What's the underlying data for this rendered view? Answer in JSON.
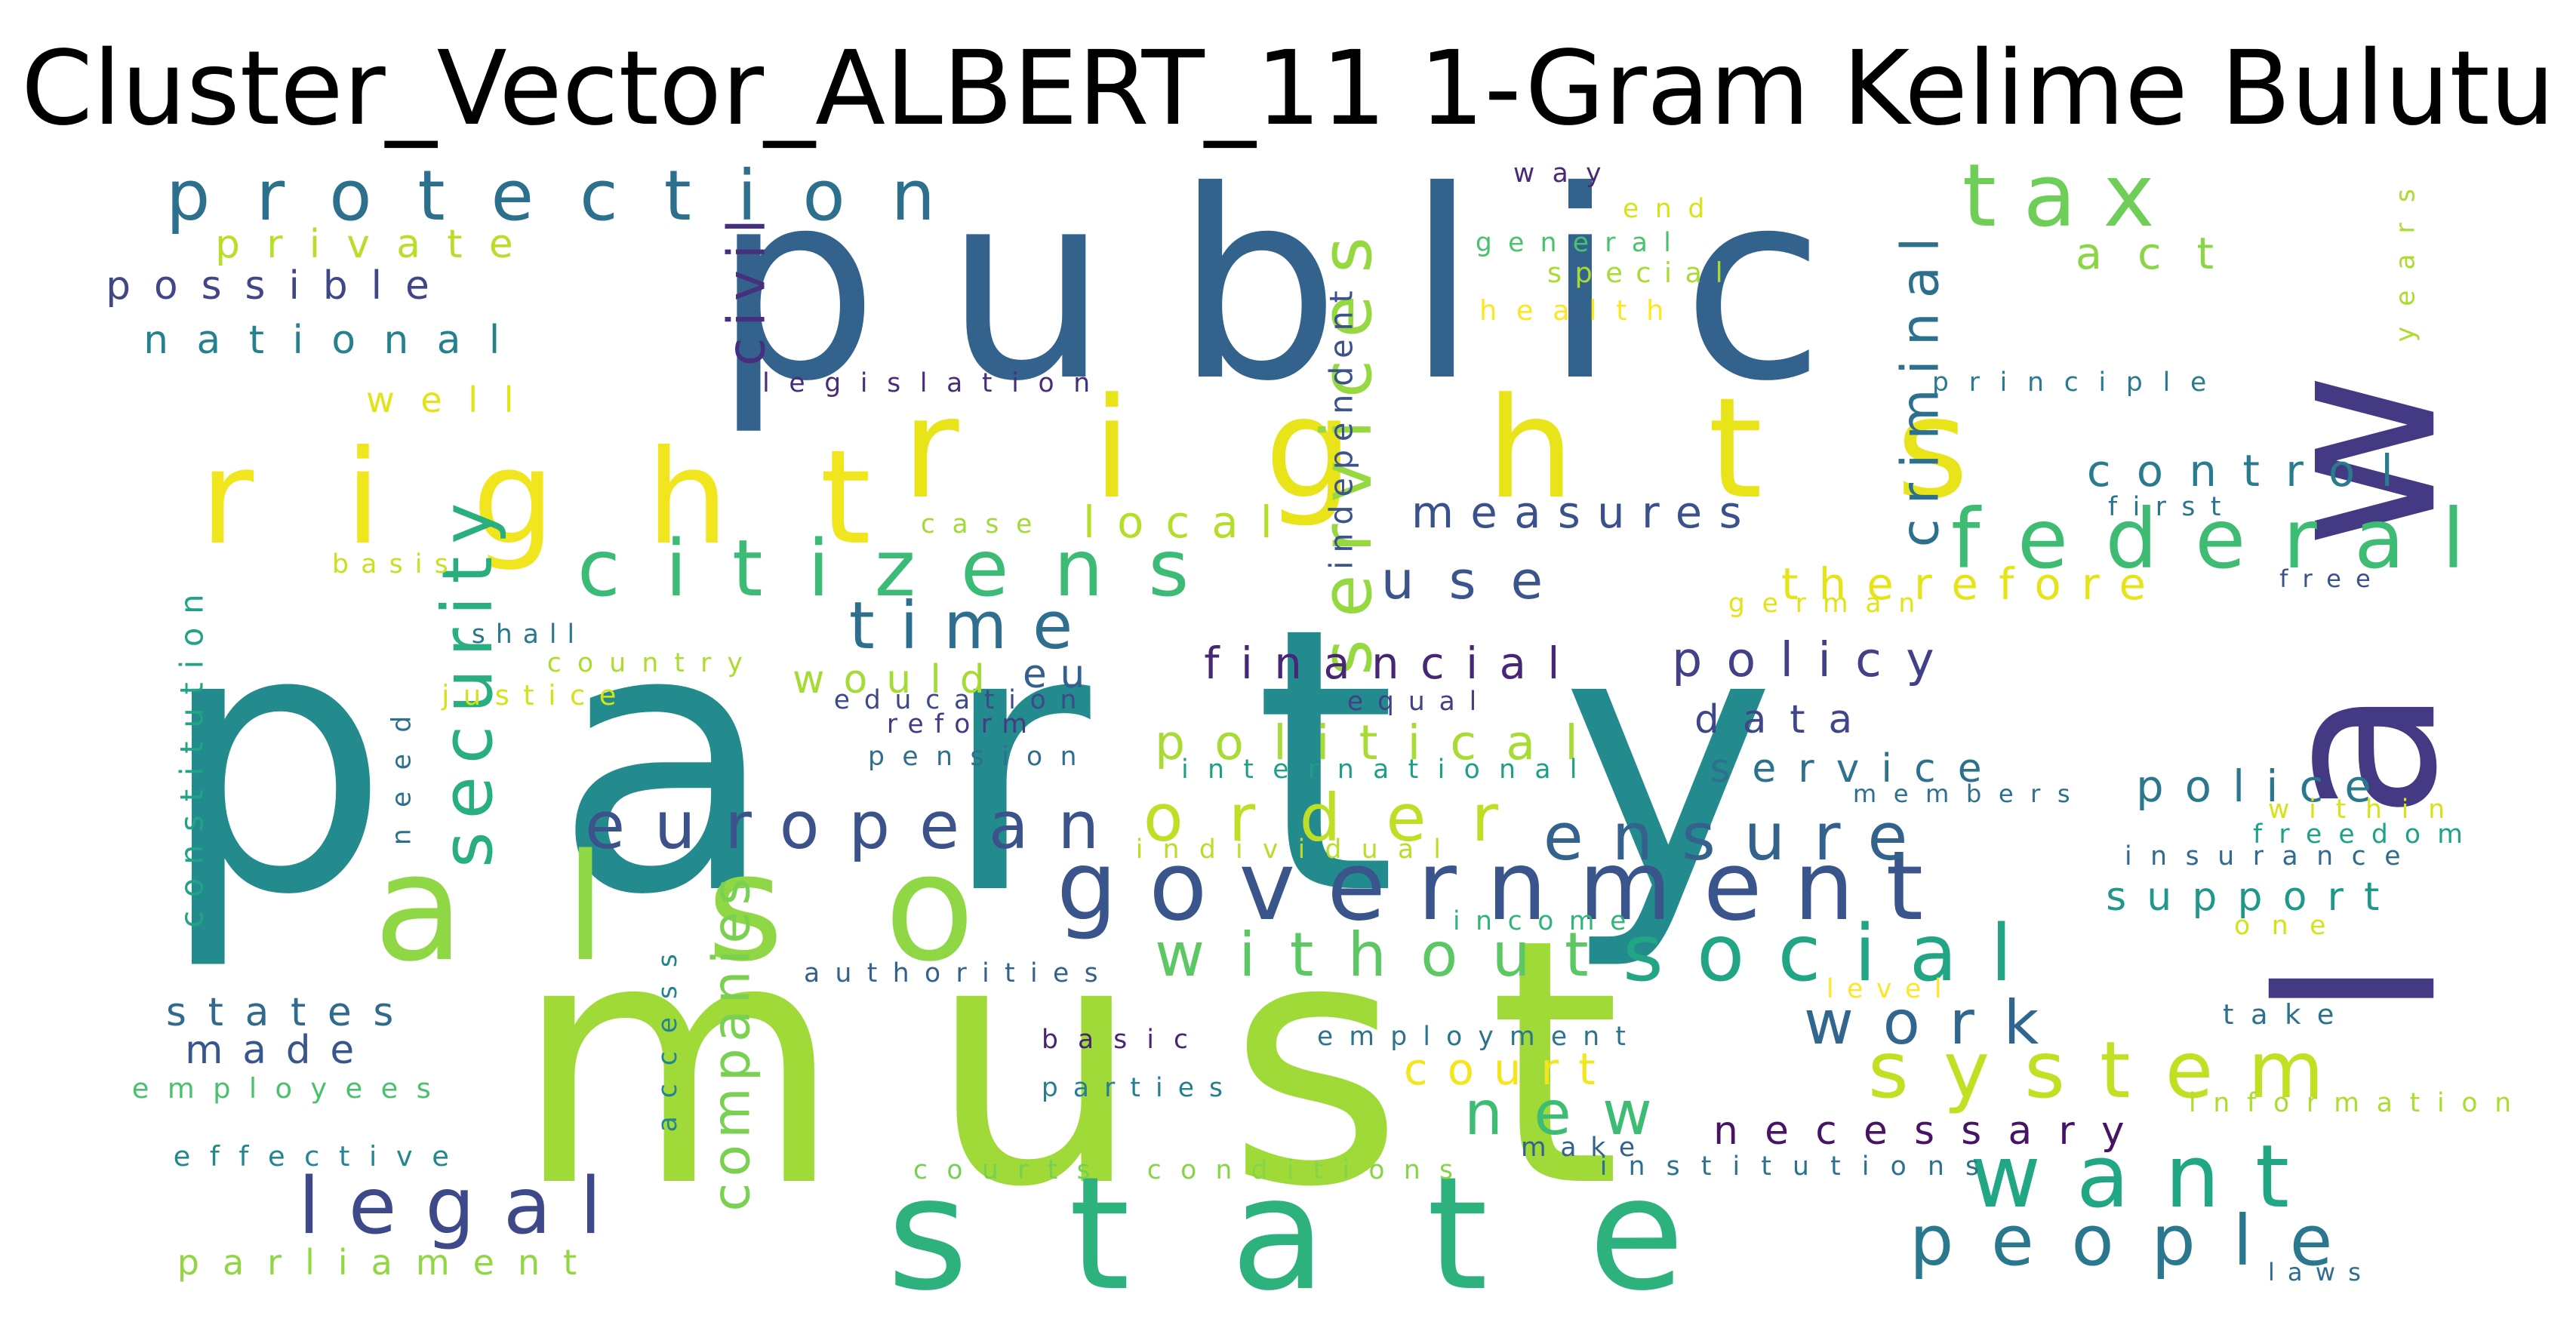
{
  "title": "Cluster_Vector_ALBERT_11 1-Gram Kelime Bulutu",
  "words": [
    {
      "text": "party",
      "color": "#238a8d"
    },
    {
      "text": "public",
      "color": "#33638d"
    },
    {
      "text": "must",
      "color": "#a0da39"
    },
    {
      "text": "law",
      "color": "#443a83"
    },
    {
      "text": "rights",
      "color": "#e8e419"
    },
    {
      "text": "right",
      "color": "#f1e51d"
    },
    {
      "text": "state",
      "color": "#2db27d"
    },
    {
      "text": "also",
      "color": "#8fd744"
    },
    {
      "text": "government",
      "color": "#39558c"
    },
    {
      "text": "protection",
      "color": "#2d708e"
    },
    {
      "text": "security",
      "color": "#29af7f"
    },
    {
      "text": "citizens",
      "color": "#3bbb75"
    },
    {
      "text": "services",
      "color": "#95d840"
    },
    {
      "text": "federal",
      "color": "#3fbc73"
    },
    {
      "text": "tax",
      "color": "#6ece58"
    },
    {
      "text": "social",
      "color": "#21a585"
    },
    {
      "text": "system",
      "color": "#c2df23"
    },
    {
      "text": "want",
      "color": "#22a785"
    },
    {
      "text": "people",
      "color": "#2a788e"
    },
    {
      "text": "legal",
      "color": "#3e4989"
    },
    {
      "text": "european",
      "color": "#3b528b"
    },
    {
      "text": "order",
      "color": "#bddf26"
    },
    {
      "text": "ensure",
      "color": "#33638d"
    },
    {
      "text": "without",
      "color": "#5cc863"
    },
    {
      "text": "time",
      "color": "#2e6e8e"
    },
    {
      "text": "criminal",
      "color": "#2d708e"
    },
    {
      "text": "work",
      "color": "#31668e"
    },
    {
      "text": "new",
      "color": "#3dbc74"
    },
    {
      "text": "political",
      "color": "#a8db34"
    },
    {
      "text": "companies",
      "color": "#7ad151"
    },
    {
      "text": "civil",
      "color": "#46307e"
    },
    {
      "text": "control",
      "color": "#297b8e"
    },
    {
      "text": "measures",
      "color": "#3b518b"
    },
    {
      "text": "use",
      "color": "#3a548c"
    },
    {
      "text": "local",
      "color": "#b5de2b"
    },
    {
      "text": "therefore",
      "color": "#e5e419"
    },
    {
      "text": "policy",
      "color": "#424086"
    },
    {
      "text": "financial",
      "color": "#482677"
    },
    {
      "text": "data",
      "color": "#3f4788"
    },
    {
      "text": "service",
      "color": "#2c718e"
    },
    {
      "text": "police",
      "color": "#2a788e"
    },
    {
      "text": "support",
      "color": "#1f988b"
    },
    {
      "text": "court",
      "color": "#f4e61e"
    },
    {
      "text": "necessary",
      "color": "#471365"
    },
    {
      "text": "states",
      "color": "#306a8e"
    },
    {
      "text": "made",
      "color": "#39568c"
    },
    {
      "text": "possible",
      "color": "#404688"
    },
    {
      "text": "national",
      "color": "#26818e"
    },
    {
      "text": "private",
      "color": "#b8de29"
    },
    {
      "text": "well",
      "color": "#e2e418"
    },
    {
      "text": "would",
      "color": "#a5db36"
    },
    {
      "text": "eu",
      "color": "#34608d"
    },
    {
      "text": "employees",
      "color": "#4ac16d"
    },
    {
      "text": "effective",
      "color": "#24878e"
    },
    {
      "text": "parliament",
      "color": "#90d743"
    },
    {
      "text": "constitution",
      "color": "#20a386"
    },
    {
      "text": "independent",
      "color": "#3b528b"
    },
    {
      "text": "legislation",
      "color": "#472d7b"
    },
    {
      "text": "case",
      "color": "#a2da37"
    },
    {
      "text": "basis",
      "color": "#c8e020"
    },
    {
      "text": "shall",
      "color": "#2a788e"
    },
    {
      "text": "country",
      "color": "#addc30"
    },
    {
      "text": "justice",
      "color": "#d2e21b"
    },
    {
      "text": "need",
      "color": "#2d708e"
    },
    {
      "text": "education",
      "color": "#3e4989"
    },
    {
      "text": "reform",
      "color": "#443b84"
    },
    {
      "text": "pension",
      "color": "#2e6f8e"
    },
    {
      "text": "equal",
      "color": "#424186"
    },
    {
      "text": "international",
      "color": "#1f9f88"
    },
    {
      "text": "individual",
      "color": "#b8de29"
    },
    {
      "text": "income",
      "color": "#31b57b"
    },
    {
      "text": "authorities",
      "color": "#33638d"
    },
    {
      "text": "access",
      "color": "#25848e"
    },
    {
      "text": "basic",
      "color": "#482475"
    },
    {
      "text": "employment",
      "color": "#2c738e"
    },
    {
      "text": "parties",
      "color": "#277f8e"
    },
    {
      "text": "courts",
      "color": "#75d054"
    },
    {
      "text": "conditions",
      "color": "#86d549"
    },
    {
      "text": "make",
      "color": "#33638d"
    },
    {
      "text": "institutions",
      "color": "#2c718e"
    },
    {
      "text": "members",
      "color": "#2c728e"
    },
    {
      "text": "within",
      "color": "#d8e219"
    },
    {
      "text": "freedom",
      "color": "#1fa188"
    },
    {
      "text": "insurance",
      "color": "#2f6b8e"
    },
    {
      "text": "one",
      "color": "#d2e21b"
    },
    {
      "text": "level",
      "color": "#fde725"
    },
    {
      "text": "take",
      "color": "#2c718e"
    },
    {
      "text": "information",
      "color": "#addc30"
    },
    {
      "text": "laws",
      "color": "#2f6c8e"
    },
    {
      "text": "way",
      "color": "#482878"
    },
    {
      "text": "end",
      "color": "#d8e219"
    },
    {
      "text": "general",
      "color": "#4ac16d"
    },
    {
      "text": "special",
      "color": "#a8db34"
    },
    {
      "text": "health",
      "color": "#fde725"
    },
    {
      "text": "act",
      "color": "#8bd646"
    },
    {
      "text": "years",
      "color": "#addc30"
    },
    {
      "text": "principle",
      "color": "#287c8e"
    },
    {
      "text": "first",
      "color": "#2c738e"
    },
    {
      "text": "free",
      "color": "#3b528b"
    },
    {
      "text": "german",
      "color": "#e2e418"
    }
  ]
}
